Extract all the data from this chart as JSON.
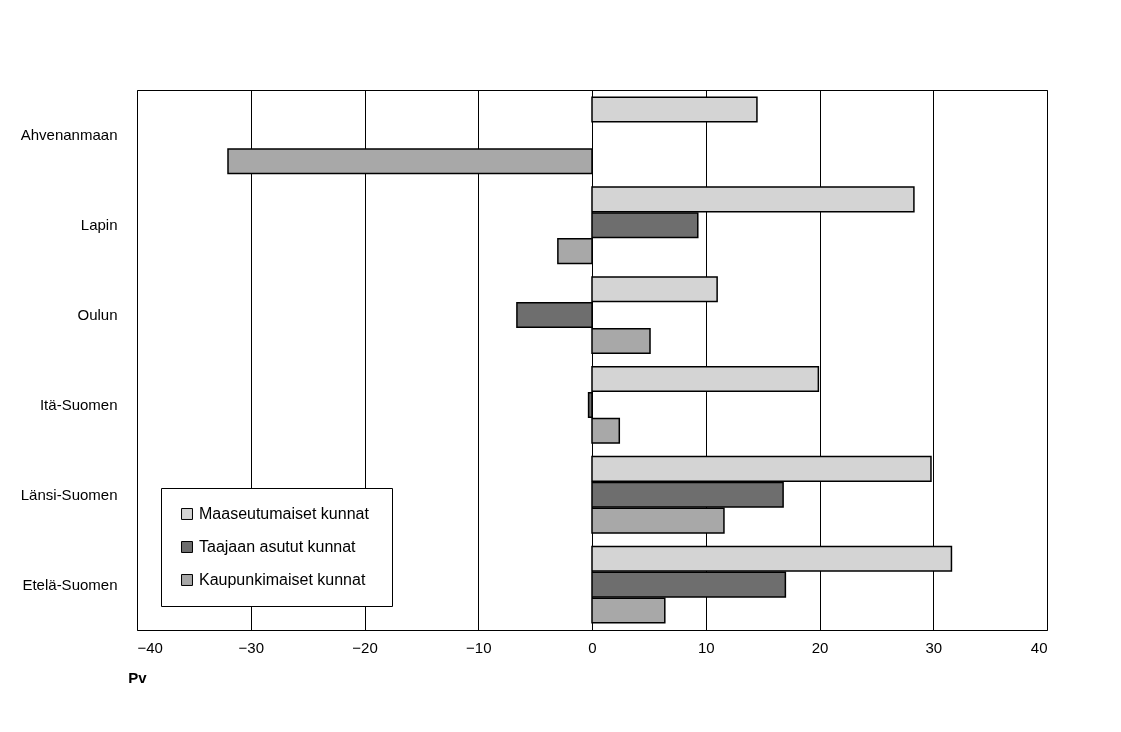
{
  "chart_data": {
    "type": "bar",
    "orientation": "horizontal",
    "xlabel": "Pv",
    "categories": [
      "Ahvenanmaan",
      "Lapin",
      "Oulun",
      "Itä-Suomen",
      "Länsi-Suomen",
      "Etelä-Suomen"
    ],
    "series": [
      {
        "name": "Maaseutumaiset  kunnat",
        "color": "#d4d4d4",
        "values": [
          14.5,
          28.3,
          11.0,
          19.9,
          29.8,
          31.6
        ]
      },
      {
        "name": "Taajaan asutut kunnat",
        "color": "#6e6e6e",
        "values": [
          null,
          9.3,
          -6.6,
          -0.3,
          16.8,
          17.0
        ]
      },
      {
        "name": "Kaupunkimaiset kunnat",
        "color": "#a8a8a8",
        "values": [
          -32.0,
          -3.0,
          5.1,
          2.4,
          11.6,
          6.4
        ]
      }
    ],
    "xlim": [
      -40,
      40
    ],
    "xticks": [
      -40,
      -30,
      -20,
      -10,
      0,
      10,
      20,
      30,
      40
    ],
    "grid": "x",
    "legend": "bottom left"
  }
}
